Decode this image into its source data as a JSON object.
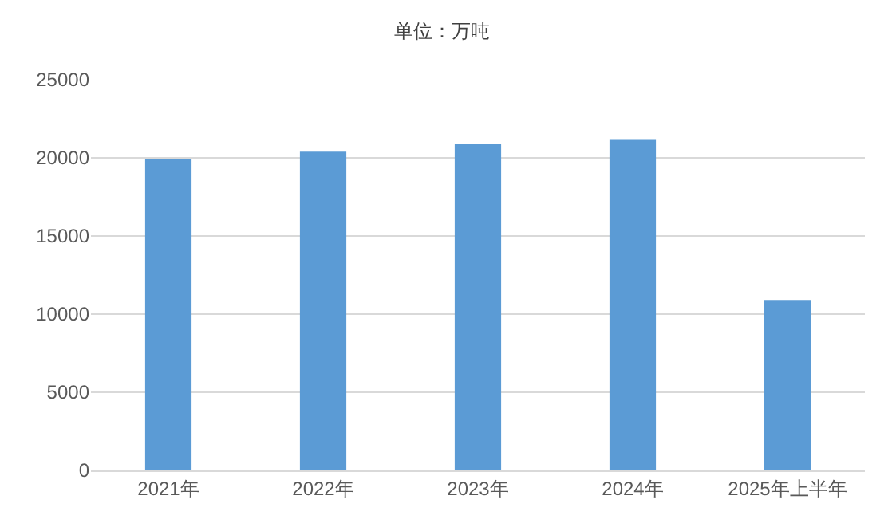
{
  "chart_data": {
    "type": "bar",
    "title": "单位：万吨",
    "categories": [
      "2021年",
      "2022年",
      "2023年",
      "2024年",
      "2025年上半年"
    ],
    "values": [
      19900,
      20400,
      20900,
      21200,
      10900
    ],
    "color": "#5b9bd5",
    "ylim": [
      0,
      25000
    ],
    "yticks": [
      0,
      5000,
      10000,
      15000,
      20000,
      25000
    ],
    "grid": "y"
  }
}
